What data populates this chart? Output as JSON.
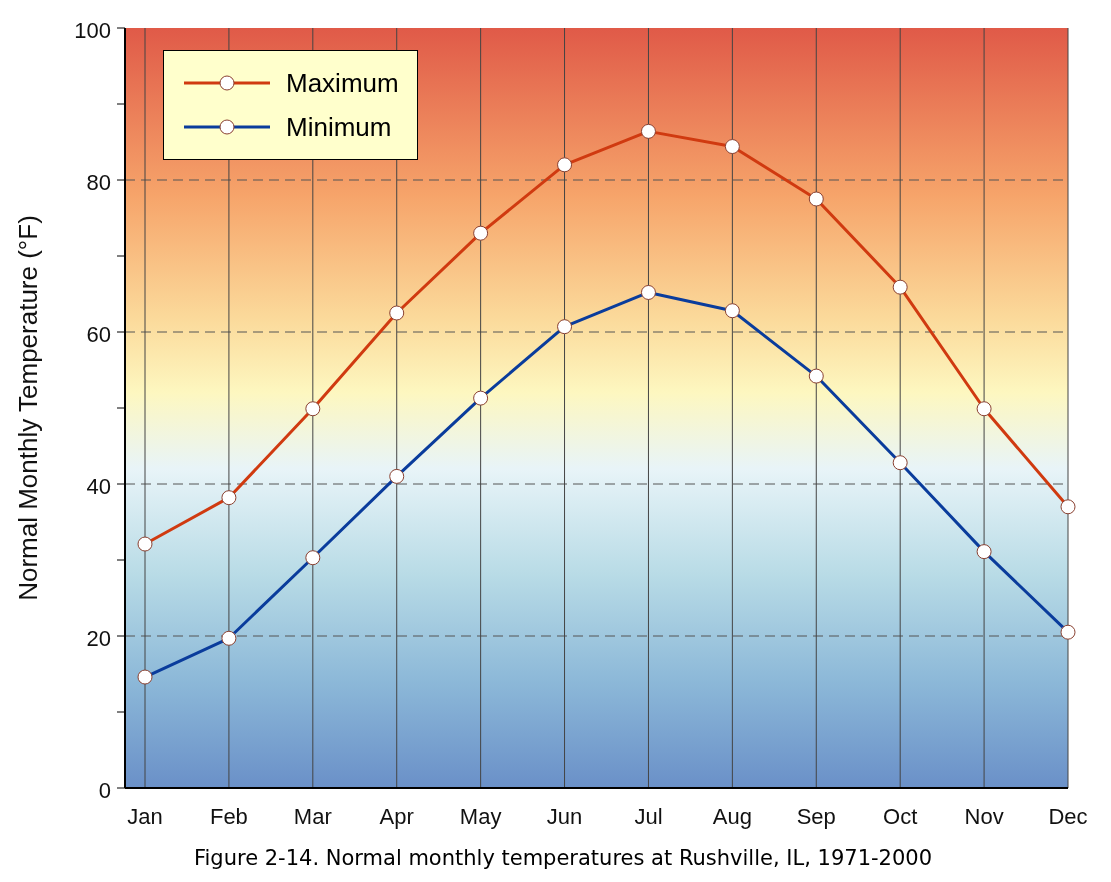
{
  "chart_data": {
    "type": "line",
    "ylabel": "Normal Monthly Temperature (°F)",
    "annotations": [
      "Figure 2-14. Normal monthly temperatures at Rushville, IL, 1971-2000"
    ],
    "categories": [
      "Jan",
      "Feb",
      "Mar",
      "Apr",
      "May",
      "Jun",
      "Jul",
      "Aug",
      "Sep",
      "Oct",
      "Nov",
      "Dec"
    ],
    "series": [
      {
        "name": "Maximum",
        "color": "#d03a10",
        "values": [
          32.1,
          38.2,
          49.9,
          62.5,
          73.0,
          82.0,
          86.4,
          84.4,
          77.5,
          65.9,
          49.9,
          37.0
        ]
      },
      {
        "name": "Minimum",
        "color": "#0a3c9c",
        "values": [
          14.6,
          19.7,
          30.3,
          41.0,
          51.3,
          60.7,
          65.2,
          62.8,
          54.2,
          42.8,
          31.1,
          20.5
        ]
      }
    ],
    "ylim": [
      0,
      100
    ],
    "yticks": [
      0,
      {
        "value": 10,
        "label": null
      },
      20,
      {
        "value": 30,
        "label": null
      },
      40,
      {
        "value": 50,
        "label": null
      },
      60,
      {
        "value": 70,
        "label": null
      },
      80,
      {
        "value": 90,
        "label": null
      },
      100
    ],
    "grid": true,
    "legend": "top left",
    "marker": "circle",
    "line_style": "solid"
  }
}
